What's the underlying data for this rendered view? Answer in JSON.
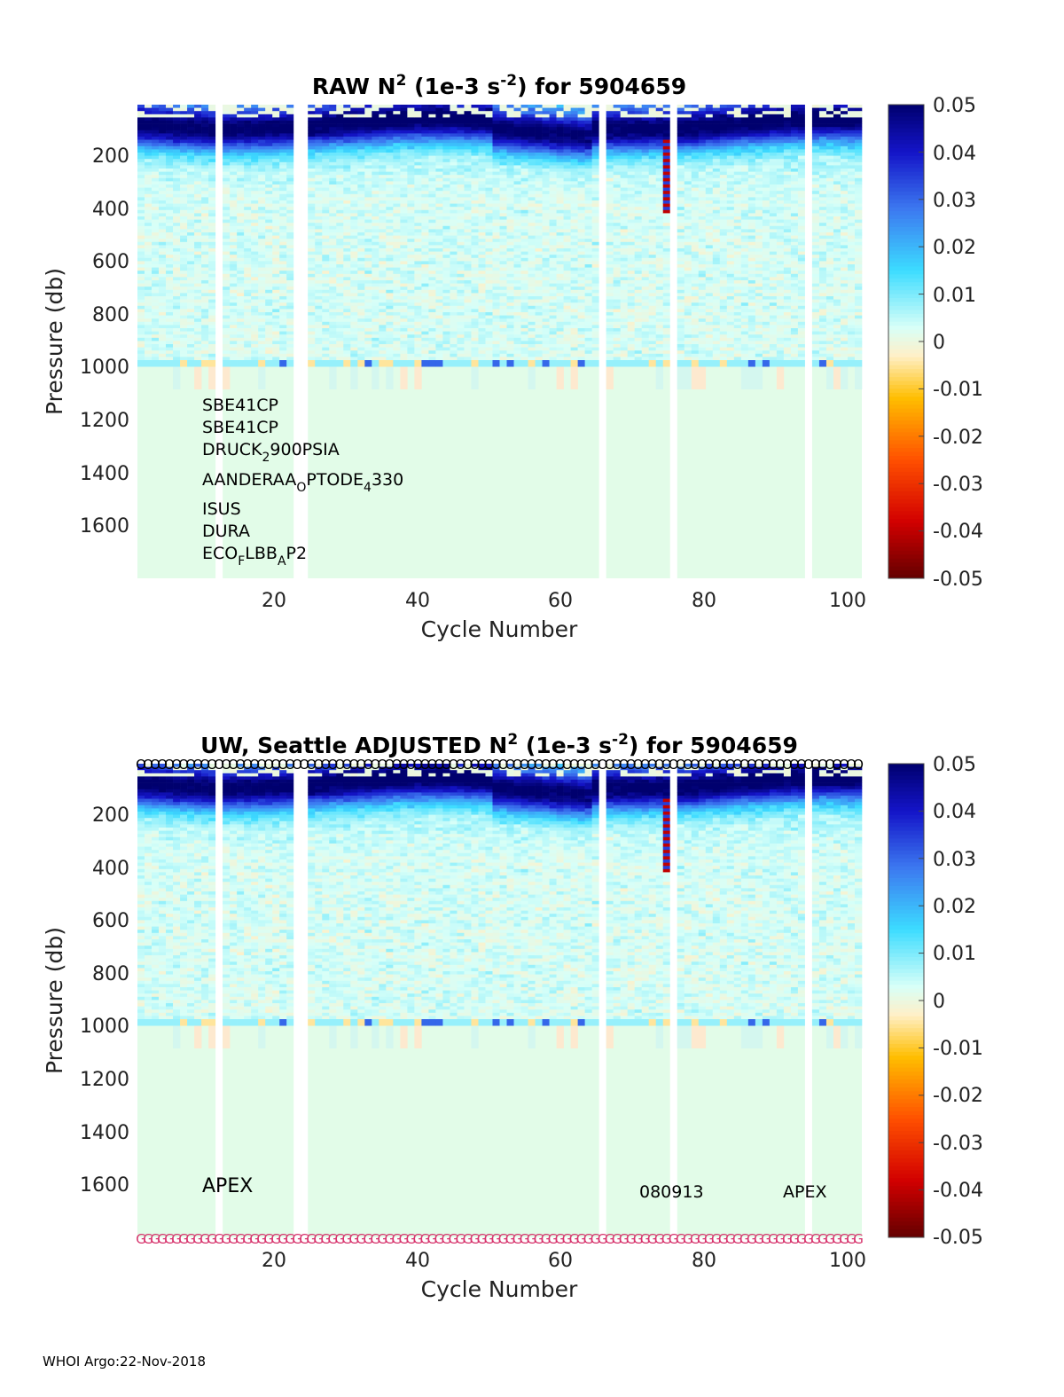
{
  "footer": "WHOI Argo:22-Nov-2018",
  "chart_data": [
    {
      "type": "heatmap",
      "title_parts": {
        "prefix": "RAW N",
        "sup1": "2",
        "mid": " (1e-3 s",
        "sup2": "-2",
        "suffix": ") for 5904659"
      },
      "xlabel": "Cycle Number",
      "ylabel": "Pressure (db)",
      "xlim": [
        1,
        102
      ],
      "ylim": [
        1800,
        20
      ],
      "y_reversed": true,
      "xticks": [
        "20",
        "40",
        "60",
        "80",
        "100"
      ],
      "yticks": [
        "200",
        "400",
        "600",
        "800",
        "1000",
        "1200",
        "1400",
        "1600"
      ],
      "colorbar": {
        "ticks": [
          "0.05",
          "0.04",
          "0.03",
          "0.02",
          "0.01",
          "0",
          "-0.01",
          "-0.02",
          "-0.03",
          "-0.04",
          "-0.05"
        ],
        "range": [
          -0.05,
          0.05
        ],
        "colormap": "blue-cyan-white-orange-red"
      },
      "missing_cycles": [
        12,
        23,
        24,
        66,
        76,
        95
      ],
      "profile_depth_db": 980,
      "annotations": [
        {
          "id": "sensor-1",
          "text": "SBE41CP"
        },
        {
          "id": "sensor-2",
          "text": "SBE41CP"
        },
        {
          "id": "sensor-3",
          "parts": [
            "DRUCK",
            "2",
            "900PSIA"
          ]
        },
        {
          "id": "sensor-4",
          "parts": [
            "AANDERAA",
            "O",
            "PTODE",
            "4",
            "330"
          ]
        },
        {
          "id": "sensor-5",
          "text": "ISUS"
        },
        {
          "id": "sensor-6",
          "text": "DURA"
        },
        {
          "id": "sensor-7",
          "parts": [
            "ECO",
            "F",
            "LBB",
            "A",
            "P2"
          ]
        }
      ]
    },
    {
      "type": "heatmap",
      "title_parts": {
        "prefix": "UW, Seattle  ADJUSTED N",
        "sup1": "2",
        "mid": " (1e-3 s",
        "sup2": "-2",
        "suffix": ") for 5904659"
      },
      "xlabel": "Cycle Number",
      "ylabel": "Pressure (db)",
      "xlim": [
        1,
        102
      ],
      "ylim": [
        1800,
        20
      ],
      "y_reversed": true,
      "xticks": [
        "20",
        "40",
        "60",
        "80",
        "100"
      ],
      "yticks": [
        "200",
        "400",
        "600",
        "800",
        "1000",
        "1200",
        "1400",
        "1600"
      ],
      "colorbar": {
        "ticks": [
          "0.05",
          "0.04",
          "0.03",
          "0.02",
          "0.01",
          "0",
          "-0.01",
          "-0.02",
          "-0.03",
          "-0.04",
          "-0.05"
        ],
        "range": [
          -0.05,
          0.05
        ],
        "colormap": "blue-cyan-white-orange-red"
      },
      "missing_cycles": [
        12,
        23,
        24,
        66,
        76,
        95
      ],
      "profile_depth_db": 980,
      "top_markers": {
        "symbol": "O",
        "color": "#000000"
      },
      "bottom_markers": {
        "symbol": "G",
        "color": "#d6336c"
      },
      "annotations": [
        {
          "id": "apex-left",
          "text": "APEX"
        },
        {
          "id": "date",
          "text": "080913"
        },
        {
          "id": "apex-right",
          "text": "APEX"
        }
      ]
    }
  ]
}
